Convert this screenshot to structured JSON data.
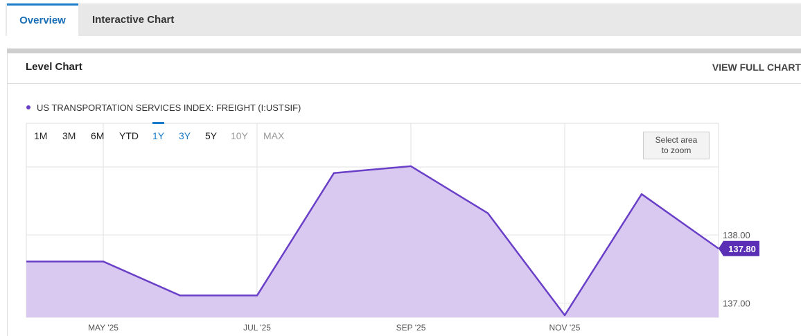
{
  "tabs": [
    "Overview",
    "Interactive Chart"
  ],
  "panel": {
    "title": "Level Chart",
    "action": "VIEW FULL CHART"
  },
  "range_buttons": [
    "1M",
    "3M",
    "6M",
    "YTD",
    "1Y",
    "3Y",
    "5Y",
    "10Y",
    "MAX"
  ],
  "zoom_hint": "Select area to zoom",
  "chart_data": {
    "type": "area",
    "categories": [
      null,
      "MAY '25",
      null,
      "JUL '25",
      null,
      "SEP '25",
      null,
      "NOV '25",
      null,
      null
    ],
    "series": [
      {
        "name": "US TRANSPORTATION SERVICES INDEX: FREIGHT (I:USTSIF)",
        "color": "#6a3fc8",
        "fill": "#d9c9f1",
        "values": [
          137.61,
          137.61,
          137.11,
          137.11,
          138.91,
          139.01,
          138.32,
          136.82,
          138.6,
          137.8
        ],
        "value_labels": [
          null,
          null,
          null,
          null,
          null,
          null,
          null,
          null,
          null,
          "137.80"
        ]
      }
    ],
    "ylim": [
      136.79,
      139.64
    ],
    "yticks": [
      {
        "value": 137,
        "label": "137.00"
      },
      {
        "value": 138,
        "label": "138.00"
      }
    ],
    "grid": true
  }
}
